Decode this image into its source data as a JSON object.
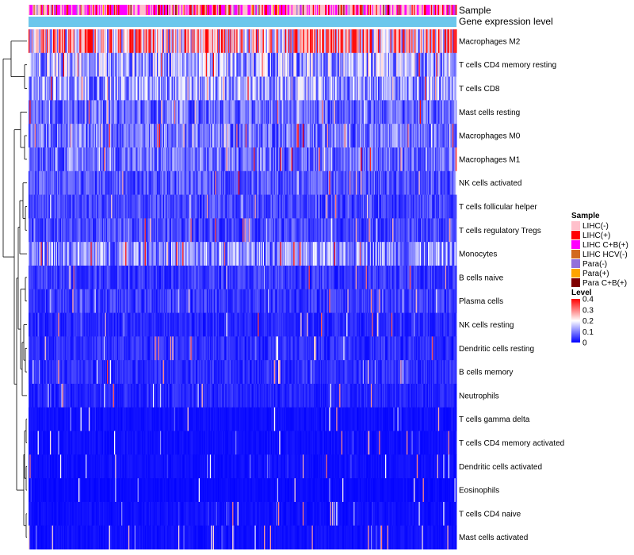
{
  "chart_data": {
    "type": "heatmap",
    "annotation_tracks": [
      "Sample",
      "Gene expression level"
    ],
    "rows": [
      {
        "label": "Macrophages M2",
        "mean": 0.25
      },
      {
        "label": "T cells CD4 memory resting",
        "mean": 0.13
      },
      {
        "label": "T cells CD8",
        "mean": 0.12
      },
      {
        "label": "Mast cells resting",
        "mean": 0.08
      },
      {
        "label": "Macrophages M0",
        "mean": 0.09
      },
      {
        "label": "Macrophages M1",
        "mean": 0.085
      },
      {
        "label": "NK cells activated",
        "mean": 0.065
      },
      {
        "label": "T cells follicular helper",
        "mean": 0.055
      },
      {
        "label": "T cells regulatory  Tregs",
        "mean": 0.055
      },
      {
        "label": "Monocytes",
        "mean": 0.11
      },
      {
        "label": "B cells naive",
        "mean": 0.045
      },
      {
        "label": "Plasma cells",
        "mean": 0.045
      },
      {
        "label": "NK cells resting",
        "mean": 0.03
      },
      {
        "label": "Dendritic cells resting",
        "mean": 0.035
      },
      {
        "label": "B cells memory",
        "mean": 0.035
      },
      {
        "label": "Neutrophils",
        "mean": 0.03
      },
      {
        "label": "T cells gamma delta",
        "mean": 0.012
      },
      {
        "label": "T cells CD4 memory activated",
        "mean": 0.012
      },
      {
        "label": "Dendritic cells activated",
        "mean": 0.012
      },
      {
        "label": "Eosinophils",
        "mean": 0.008
      },
      {
        "label": "T cells CD4 naive",
        "mean": 0.012
      },
      {
        "label": "Mast cells activated",
        "mean": 0.012
      }
    ],
    "n_columns": 420,
    "sample_legend": {
      "title": "Sample",
      "entries": [
        {
          "label": "LIHC(-)",
          "color": "#ffc0cb"
        },
        {
          "label": "LIHC(+)",
          "color": "#ff0000"
        },
        {
          "label": "LIHC C+B(+)",
          "color": "#ff00ff"
        },
        {
          "label": "LIHC HCV(-)",
          "color": "#d2691e"
        },
        {
          "label": "Para(-)",
          "color": "#9370db"
        },
        {
          "label": "Para(+)",
          "color": "#ffa500"
        },
        {
          "label": "Para C+B(+)",
          "color": "#800000"
        }
      ]
    },
    "level_legend": {
      "title": "Level",
      "ticks": [
        "0.4",
        "0.3",
        "0.2",
        "0.1",
        "0"
      ],
      "tick_values": [
        0.4,
        0.3,
        0.2,
        0.1,
        0
      ],
      "range": [
        0,
        0.4
      ],
      "colors": [
        "#0000ff",
        "#ffffff",
        "#ff0000"
      ]
    },
    "expression_bar_color": "#6cc7ec"
  }
}
